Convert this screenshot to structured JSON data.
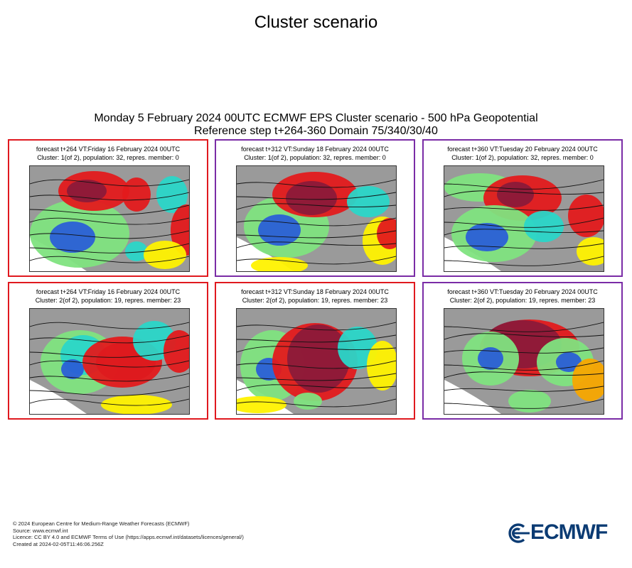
{
  "page_title": "Cluster scenario",
  "main_title_line1": "Monday 5 February 2024 00UTC ECMWF EPS Cluster scenario - 500 hPa Geopotential",
  "main_title_line2": "Reference step t+264-360 Domain 75/340/30/40",
  "colors": {
    "cluster1_border_red": "#e0191f",
    "cluster_border_purple": "#7a2ca6",
    "anomaly_strong_positive": "#8b1a3a",
    "anomaly_positive": "#e31a1c",
    "anomaly_mild_positive": "#f7a600",
    "anomaly_weak_positive": "#fff200",
    "anomaly_weak_negative": "#7fe37f",
    "anomaly_negative": "#2ad6c8",
    "anomaly_strong_negative": "#2a5fd6",
    "land": "#9a9a9a",
    "logo": "#0b3b73"
  },
  "panels": [
    {
      "line1": "forecast t+264 VT:Friday 16 February 2024 00UTC",
      "line2": "Cluster: 1(of 2), population: 32, repres. member: 0",
      "border": "red"
    },
    {
      "line1": "forecast t+312 VT:Sunday 18 February 2024 00UTC",
      "line2": "Cluster: 1(of 2), population: 32, repres. member: 0",
      "border": "purple"
    },
    {
      "line1": "forecast t+360 VT:Tuesday 20 February 2024 00UTC",
      "line2": "Cluster: 1(of 2), population: 32, repres. member: 0",
      "border": "purple"
    },
    {
      "line1": "forecast t+264 VT:Friday 16 February 2024 00UTC",
      "line2": "Cluster: 2(of 2), population: 19, repres. member: 23",
      "border": "red"
    },
    {
      "line1": "forecast t+312 VT:Sunday 18 February 2024 00UTC",
      "line2": "Cluster: 2(of 2), population: 19, repres. member: 23",
      "border": "red"
    },
    {
      "line1": "forecast t+360 VT:Tuesday 20 February 2024 00UTC",
      "line2": "Cluster: 2(of 2), population: 19, repres. member: 23",
      "border": "purple"
    }
  ],
  "footer": {
    "line1": "© 2024 European Centre for Medium-Range Weather Forecasts (ECMWF)",
    "line2": "Source: www.ecmwf.int",
    "line3": "Licence: CC BY 4.0 and ECMWF Terms of Use (https://apps.ecmwf.int/datasets/licences/general/)",
    "line4": "Created at 2024-02-05T11:46:06.256Z"
  },
  "logo_text": "ECMWF"
}
